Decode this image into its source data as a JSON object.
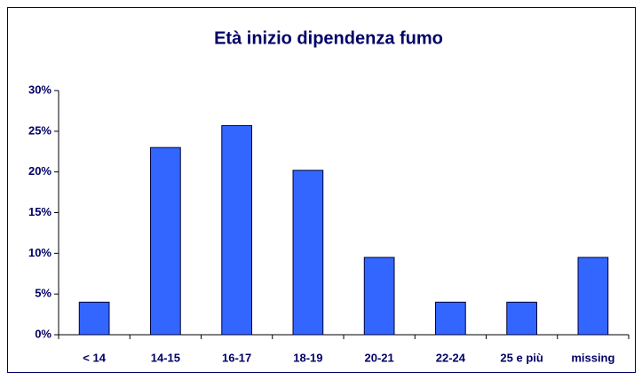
{
  "chart_data": {
    "type": "bar",
    "title": "Età inizio dipendenza fumo",
    "categories": [
      "< 14",
      "14-15",
      "16-17",
      "18-19",
      "20-21",
      "22-24",
      "25 e più",
      "missing"
    ],
    "values": [
      4,
      23,
      25.7,
      20.2,
      9.5,
      4,
      4,
      9.5
    ],
    "color": "#3366ff",
    "ylim": [
      0,
      30
    ],
    "yticks": [
      {
        "value": 0,
        "label": "0%"
      },
      {
        "value": 5,
        "label": "5%"
      },
      {
        "value": 10,
        "label": "10%"
      },
      {
        "value": 15,
        "label": "15%"
      },
      {
        "value": 20,
        "label": "20%"
      },
      {
        "value": 25,
        "label": "25%"
      },
      {
        "value": 30,
        "label": "30%"
      }
    ],
    "grid": false
  }
}
